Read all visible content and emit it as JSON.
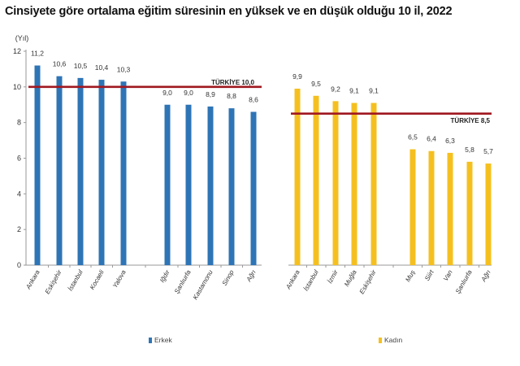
{
  "title": "Cinsiyete göre ortalama eğitim süresinin en yüksek ve en düşük olduğu 10 il, 2022",
  "colors": {
    "male": "#2e75b6",
    "female": "#f5c01f",
    "reference": "#a01820"
  },
  "chart_data": [
    {
      "type": "bar",
      "ylabel": "(Yıl)",
      "ylim": [
        0,
        12
      ],
      "yticks": [
        0,
        2,
        4,
        6,
        8,
        10,
        12
      ],
      "categories": [
        "Ankara",
        "Eskişehir",
        "İstanbul",
        "Kocaeli",
        "Yalova",
        "Iğdır",
        "Şanlıurfa",
        "Kastamonu",
        "Sinop",
        "Ağrı"
      ],
      "series": [
        {
          "name": "Erkek",
          "values": [
            11.2,
            10.6,
            10.5,
            10.4,
            10.3,
            9.0,
            9.0,
            8.9,
            8.8,
            8.6
          ]
        }
      ],
      "value_labels": [
        "11,2",
        "10,6",
        "10,5",
        "10,4",
        "10,3",
        "9,0",
        "9,0",
        "8,9",
        "8,8",
        "8,6"
      ],
      "reference": {
        "label": "TÜRKİYE 10,0",
        "value": 10.0
      },
      "grid": false,
      "legend": "bottom"
    },
    {
      "type": "bar",
      "ylim": [
        0,
        12
      ],
      "categories": [
        "Ankara",
        "İstanbul",
        "İzmir",
        "Muğla",
        "Eskişehir",
        "Muş",
        "Siirt",
        "Van",
        "Şanlıurfa",
        "Ağrı"
      ],
      "series": [
        {
          "name": "Kadın",
          "values": [
            9.9,
            9.5,
            9.2,
            9.1,
            9.1,
            6.5,
            6.4,
            6.3,
            5.8,
            5.7
          ]
        }
      ],
      "value_labels": [
        "9,9",
        "9,5",
        "9,2",
        "9,1",
        "9,1",
        "6,5",
        "6,4",
        "6,3",
        "5,8",
        "5,7"
      ],
      "reference": {
        "label": "TÜRKİYE 8,5",
        "value": 8.5
      },
      "grid": false,
      "legend": "bottom"
    }
  ]
}
